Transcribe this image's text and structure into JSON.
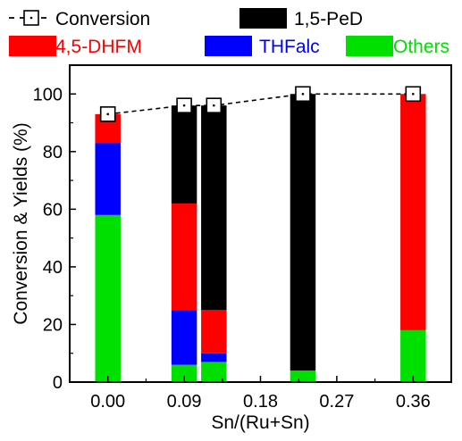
{
  "chart_data": {
    "type": "bar",
    "stacked": true,
    "xlabel": "Sn/(Ru+Sn)",
    "ylabel": "Conversion & Yields (%)",
    "xlim": [
      -0.045,
      0.405
    ],
    "ylim": [
      0,
      110
    ],
    "x_ticks": [
      "0.00",
      "0.09",
      "0.18",
      "0.27",
      "0.36"
    ],
    "x_tick_values": [
      0.0,
      0.09,
      0.18,
      0.27,
      0.36
    ],
    "y_ticks": [
      "0",
      "20",
      "40",
      "60",
      "80",
      "100"
    ],
    "y_tick_values": [
      0,
      20,
      40,
      60,
      80,
      100
    ],
    "bar_width": 0.03,
    "x": [
      0.0,
      0.09,
      0.125,
      0.23,
      0.36
    ],
    "series": [
      {
        "name": "Others",
        "color": "#00e000",
        "values": [
          58,
          6,
          7,
          4,
          18
        ]
      },
      {
        "name": "THFalc",
        "color": "#0000ff",
        "values": [
          25,
          19,
          3,
          0,
          0
        ]
      },
      {
        "name": "4,5-DHFM",
        "color": "#ff0000",
        "values": [
          10,
          37,
          15,
          0,
          82
        ]
      },
      {
        "name": "1,5-PeD",
        "color": "#000000",
        "values": [
          0,
          34,
          71,
          96,
          0
        ]
      }
    ],
    "line_series": {
      "name": "Conversion",
      "marker": "open-square",
      "line_style": "dashed",
      "color": "#000000",
      "values": [
        93,
        96,
        96,
        100,
        100
      ]
    },
    "legend": {
      "placement": "top",
      "items": [
        {
          "label": "Conversion",
          "kind": "line",
          "color": "#000000",
          "text_color": "#000000"
        },
        {
          "label": "1,5-PeD",
          "kind": "box",
          "color": "#000000",
          "text_color": "#000000"
        },
        {
          "label": "4,5-DHFM",
          "kind": "box",
          "color": "#ff0000",
          "text_color": "#ff0000"
        },
        {
          "label": "THFalc",
          "kind": "box",
          "color": "#0000ff",
          "text_color": "#0000ff"
        },
        {
          "label": "Others",
          "kind": "box",
          "color": "#00e000",
          "text_color": "#00e000"
        }
      ]
    },
    "grid": false
  }
}
